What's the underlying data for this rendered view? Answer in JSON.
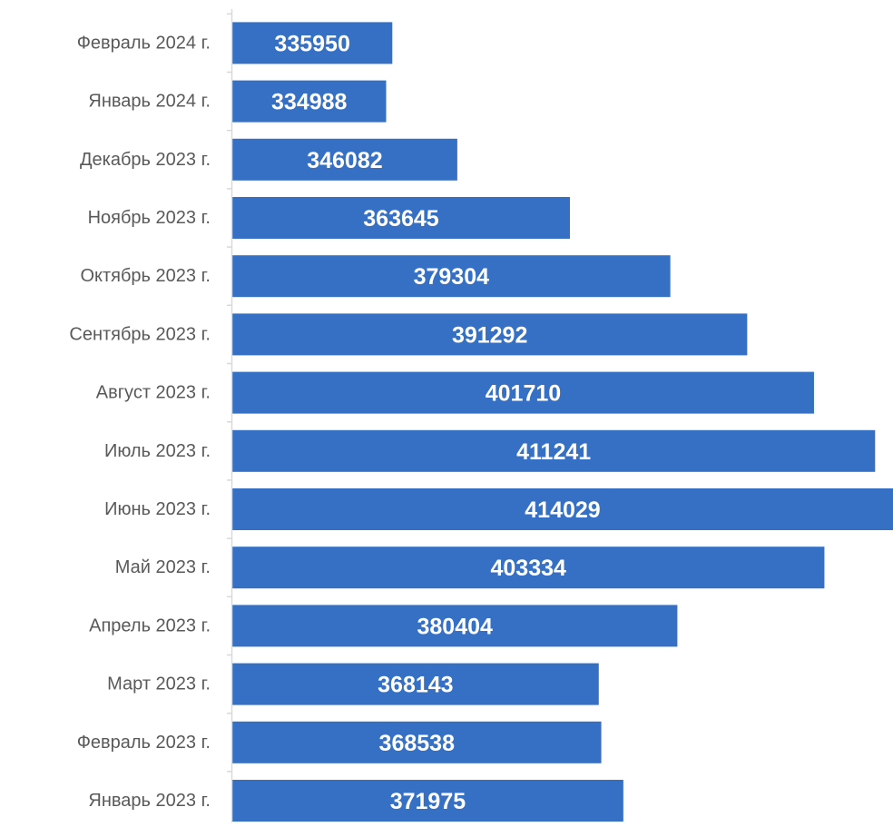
{
  "chart_data": {
    "type": "bar",
    "orientation": "horizontal",
    "categories": [
      "Январь 2023 г.",
      "Февраль 2023 г.",
      "Март 2023 г.",
      "Апрель 2023 г.",
      "Май 2023 г.",
      "Июнь 2023 г.",
      "Июль 2023 г.",
      "Август 2023 г.",
      "Сентябрь 2023 г.",
      "Октябрь 2023 г.",
      "Ноябрь 2023 г.",
      "Декабрь 2023 г.",
      "Январь 2024 г.",
      "Февраль 2024 г."
    ],
    "values": [
      371975,
      368538,
      368143,
      380404,
      403334,
      414029,
      411241,
      401710,
      391292,
      379304,
      363645,
      346082,
      334988,
      335950
    ],
    "data_labels": [
      "371975",
      "368538",
      "368143",
      "380404",
      "403334",
      "414029",
      "411241",
      "401710",
      "391292",
      "379304",
      "363645",
      "346082",
      "334988",
      "335950"
    ],
    "xlim": [
      311000,
      414029
    ],
    "category_order": "bottom-to-top",
    "grid": false,
    "legend": "none",
    "title": "",
    "xlabel": "",
    "ylabel": "",
    "colors": {
      "bar": "#3570c4",
      "category_label": "#595959",
      "data_label": "#ffffff",
      "axis": "#d9d9d9"
    }
  }
}
